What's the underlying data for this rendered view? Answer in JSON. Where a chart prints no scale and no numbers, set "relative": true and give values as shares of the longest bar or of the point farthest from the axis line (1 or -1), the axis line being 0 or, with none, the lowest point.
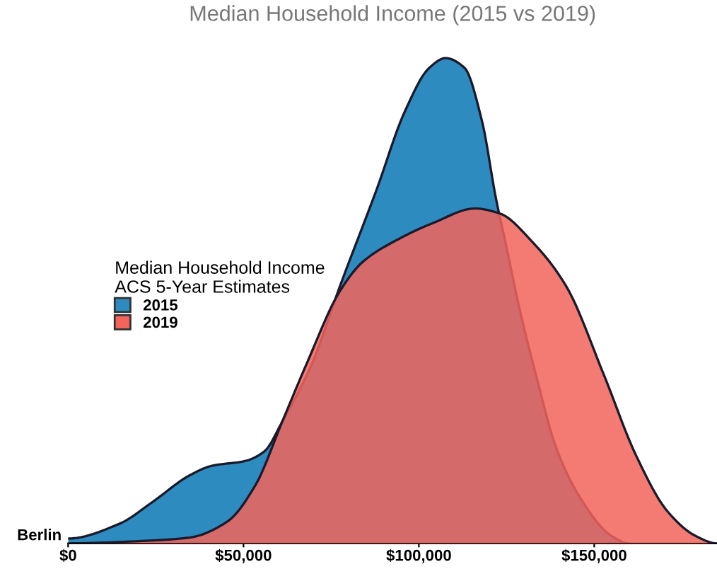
{
  "chart_data": {
    "type": "area",
    "title": "Median Household Income (2015 vs 2019)",
    "ylabel": "Berlin",
    "legend_title": "Median Household Income\nACS 5-Year Estimates",
    "relative": true,
    "legend": "left",
    "grid": false,
    "xlim": [
      0,
      185000
    ],
    "xticks": [
      {
        "value": 0,
        "label": "$0"
      },
      {
        "value": 50000,
        "label": "$50,000"
      },
      {
        "value": 100000,
        "label": "$100,000"
      },
      {
        "value": 150000,
        "label": "$150,000"
      }
    ],
    "series": [
      {
        "name": "2015",
        "color": "#2e8bc0",
        "x": [
          0,
          14500,
          24000,
          34600,
          41000,
          50600,
          56000,
          61000,
          69500,
          77500,
          88000,
          96000,
          103000,
          107600,
          113000,
          118000,
          122000,
          125000,
          128500,
          134000,
          139000,
          146000,
          155000,
          160000
        ],
        "values": [
          0.01,
          0.04,
          0.085,
          0.14,
          0.16,
          0.17,
          0.19,
          0.25,
          0.37,
          0.53,
          0.73,
          0.89,
          0.98,
          1.0,
          0.98,
          0.87,
          0.71,
          0.61,
          0.49,
          0.33,
          0.2,
          0.094,
          0.015,
          0
        ]
      },
      {
        "name": "2019",
        "color": "#f2645c",
        "x": [
          0,
          21000,
          34600,
          45400,
          53400,
          61000,
          68000,
          77500,
          84000,
          95000,
          104000,
          116000,
          123000,
          132500,
          142000,
          152600,
          162000,
          171000,
          179000,
          185000
        ],
        "values": [
          0,
          0.005,
          0.012,
          0.045,
          0.12,
          0.25,
          0.37,
          0.52,
          0.58,
          0.63,
          0.66,
          0.69,
          0.68,
          0.62,
          0.53,
          0.35,
          0.18,
          0.065,
          0.015,
          0
        ]
      }
    ]
  }
}
